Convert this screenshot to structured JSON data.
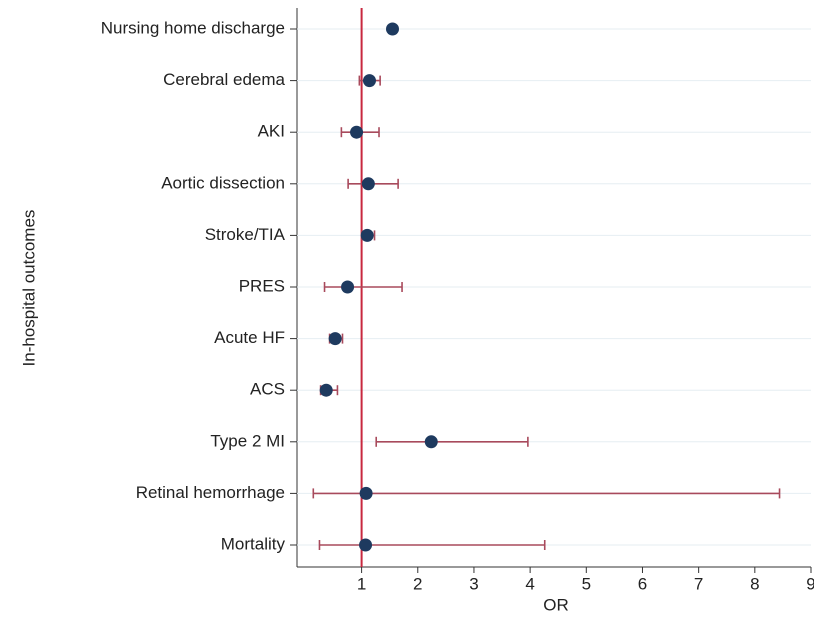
{
  "chart_data": {
    "type": "forest",
    "categories": [
      "Nursing home discharge",
      "Cerebral edema",
      "AKI",
      "Aortic dissection",
      "Stroke/TIA",
      "PRES",
      "Acute HF",
      "ACS",
      "Type 2 MI",
      "Retinal hemorrhage",
      "Mortality"
    ],
    "values": [
      1.55,
      1.14,
      0.91,
      1.12,
      1.1,
      0.75,
      0.53,
      0.37,
      2.24,
      1.08,
      1.07
    ],
    "ci_low": [
      1.52,
      0.96,
      0.64,
      0.76,
      1.01,
      0.34,
      0.43,
      0.27,
      1.26,
      0.14,
      0.25
    ],
    "ci_high": [
      1.58,
      1.33,
      1.31,
      1.65,
      1.23,
      1.72,
      0.66,
      0.57,
      3.96,
      8.44,
      4.26
    ],
    "xlim": [
      -0.15,
      9
    ],
    "xticks": [
      1,
      2,
      3,
      4,
      5,
      6,
      7,
      8,
      9
    ],
    "xlabel": "OR",
    "ylabel": "In-hospital outcomes",
    "reference_line": 1,
    "marker_color": "#1e3a5f",
    "ci_color": "#a84a5c",
    "reference_color": "#c8283f",
    "grid": true
  }
}
